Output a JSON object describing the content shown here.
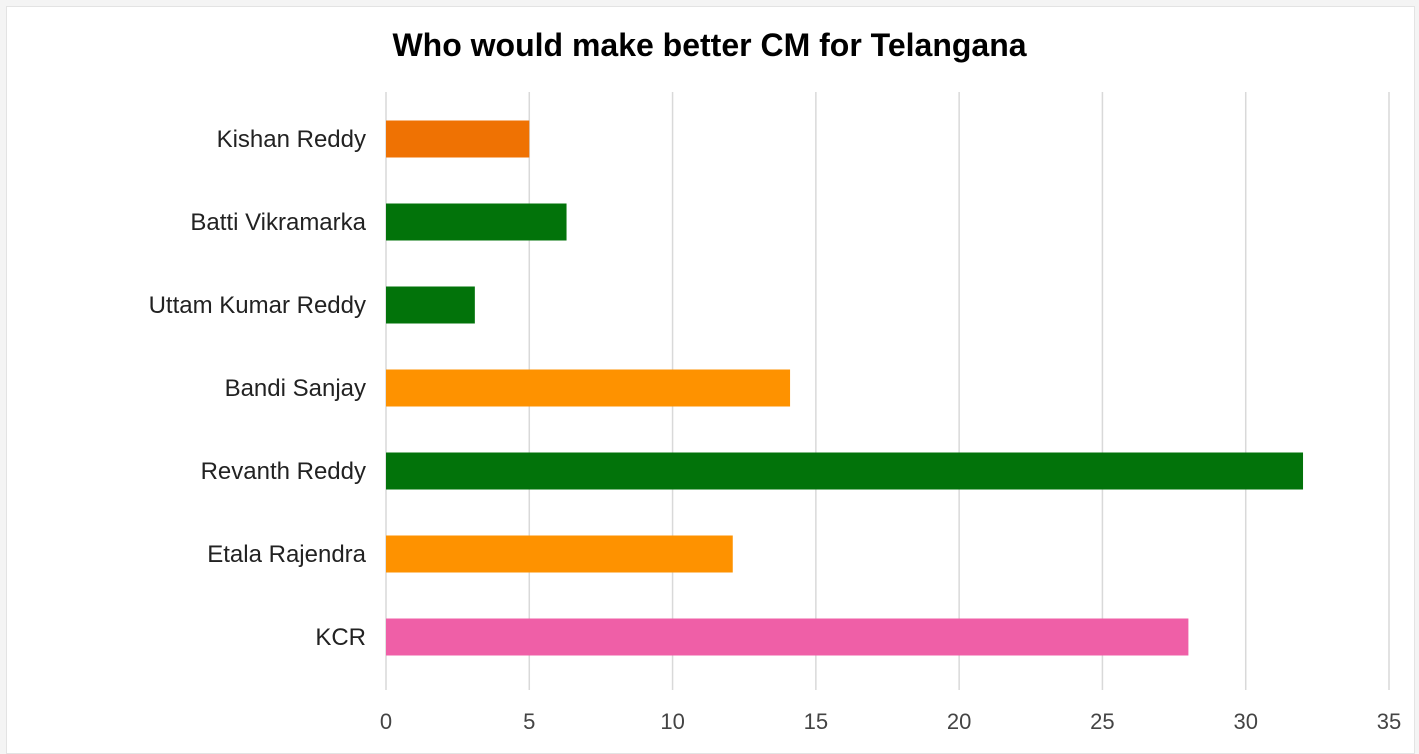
{
  "chart_data": {
    "type": "bar",
    "orientation": "horizontal",
    "title": "Who would make better CM for Telangana",
    "xlabel": "",
    "ylabel": "",
    "categories": [
      "Kishan Reddy",
      "Batti Vikramarka",
      "Uttam Kumar Reddy",
      "Bandi Sanjay",
      "Revanth Reddy",
      "Etala Rajendra",
      "KCR"
    ],
    "values": [
      5,
      6.3,
      3.1,
      14.1,
      32,
      12.1,
      28
    ],
    "bar_colors": [
      "#ef7203",
      "#02730a",
      "#02730a",
      "#fe9200",
      "#02730a",
      "#fe9200",
      "#ef5fa7"
    ],
    "xlim": [
      0,
      35
    ],
    "xticks": [
      0,
      5,
      10,
      15,
      20,
      25,
      30,
      35
    ],
    "grid": true,
    "legend": "none"
  }
}
